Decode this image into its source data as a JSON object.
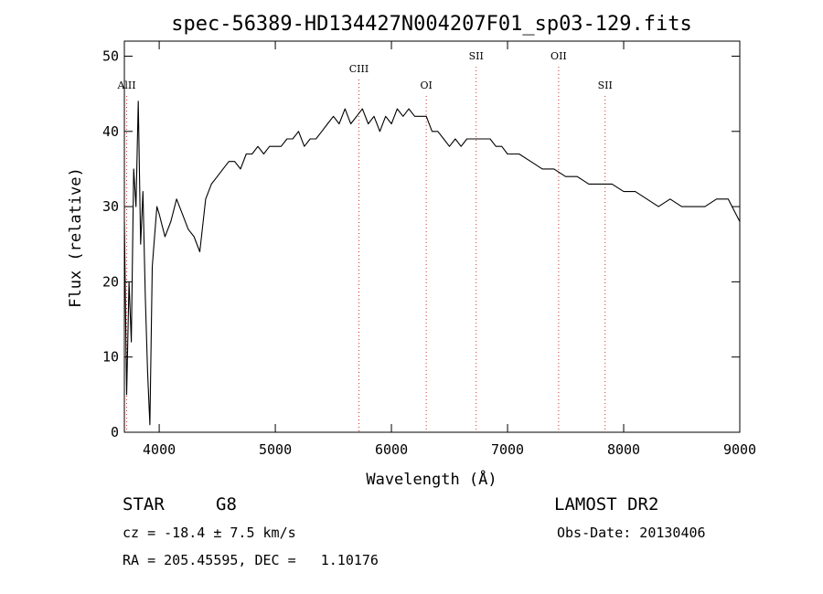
{
  "chart_data": {
    "type": "line",
    "title": "spec-56389-HD134427N004207F01_sp03-129.fits",
    "xlabel": "Wavelength (Å)",
    "ylabel": "Flux (relative)",
    "xlim": [
      3700,
      9000
    ],
    "ylim": [
      0,
      52
    ],
    "xticks": [
      4000,
      5000,
      6000,
      7000,
      8000,
      9000
    ],
    "yticks": [
      0,
      10,
      20,
      30,
      40,
      50
    ],
    "grid": false,
    "line_color": "#000000",
    "line_marker_color": "#cc3333",
    "lines": [
      {
        "label": "AlII",
        "x": 3720
      },
      {
        "label": "CIII",
        "x": 5720
      },
      {
        "label": "OI",
        "x": 6300
      },
      {
        "label": "SII",
        "x": 6730
      },
      {
        "label": "OII",
        "x": 7440
      },
      {
        "label": "SII",
        "x": 7840
      }
    ],
    "series": [
      {
        "x": [
          3700,
          3720,
          3740,
          3760,
          3780,
          3800,
          3820,
          3840,
          3860,
          3880,
          3900,
          3920,
          3940,
          3960,
          3980,
          4000,
          4050,
          4100,
          4150,
          4200,
          4250,
          4300,
          4350,
          4400,
          4450,
          4500,
          4550,
          4600,
          4650,
          4700,
          4750,
          4800,
          4850,
          4900,
          4950,
          5000,
          5050,
          5100,
          5150,
          5200,
          5250,
          5300,
          5350,
          5400,
          5450,
          5500,
          5550,
          5600,
          5650,
          5700,
          5750,
          5800,
          5850,
          5900,
          5950,
          6000,
          6050,
          6100,
          6150,
          6200,
          6250,
          6300,
          6350,
          6400,
          6450,
          6500,
          6550,
          6600,
          6650,
          6700,
          6750,
          6800,
          6850,
          6900,
          6950,
          7000,
          7100,
          7200,
          7300,
          7400,
          7500,
          7600,
          7700,
          7800,
          7900,
          8000,
          8100,
          8200,
          8300,
          8400,
          8500,
          8600,
          8700,
          8800,
          8900,
          9000
        ],
        "values": [
          28,
          5,
          20,
          12,
          35,
          30,
          44,
          25,
          32,
          18,
          8,
          1,
          22,
          26,
          30,
          29,
          26,
          28,
          31,
          29,
          27,
          26,
          24,
          31,
          33,
          34,
          35,
          36,
          36,
          35,
          37,
          37,
          38,
          37,
          38,
          38,
          38,
          39,
          39,
          40,
          38,
          39,
          39,
          40,
          41,
          42,
          41,
          43,
          41,
          42,
          43,
          41,
          42,
          40,
          42,
          41,
          43,
          42,
          43,
          42,
          42,
          42,
          40,
          40,
          39,
          38,
          39,
          38,
          39,
          39,
          39,
          39,
          39,
          38,
          38,
          37,
          37,
          36,
          35,
          35,
          34,
          34,
          33,
          33,
          33,
          32,
          32,
          31,
          30,
          31,
          30,
          30,
          30,
          31,
          31,
          28
        ]
      }
    ]
  },
  "info": {
    "object_type": "STAR",
    "subclass": "G8",
    "survey": "LAMOST DR2",
    "cz": "cz = -18.4 ± 7.5 km/s",
    "obs_date": "Obs-Date: 20130406",
    "coords": "RA = 205.45595, DEC =   1.10176"
  }
}
